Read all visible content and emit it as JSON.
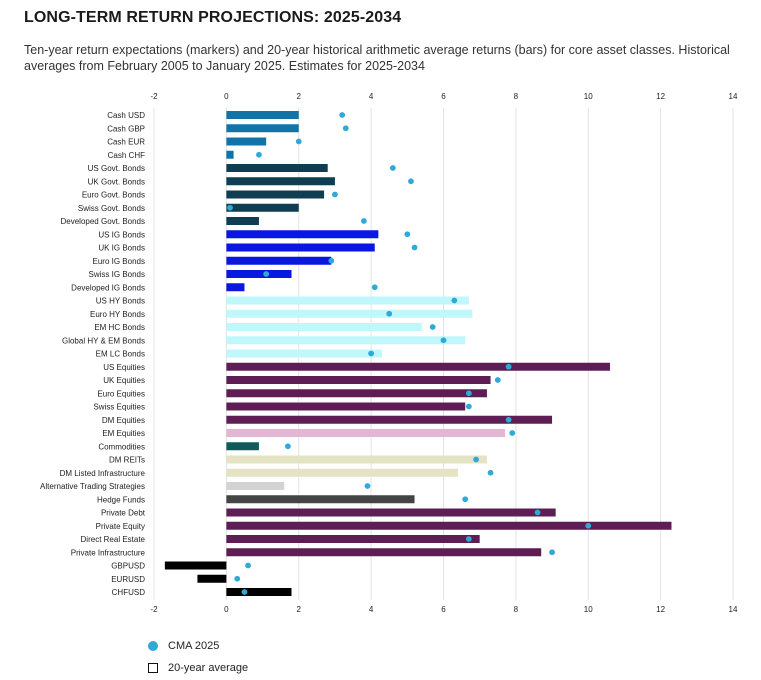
{
  "title": "LONG-TERM RETURN PROJECTIONS: 2025-2034",
  "subtitle": "Ten-year return expectations (markers) and 20-year historical arithmetic average returns (bars) for core asset classes. Historical averages from February 2005 to January 2025. Estimates for 2025-2034",
  "legend": {
    "cma_label": "CMA 2025",
    "avg_label": "20-year average"
  },
  "colors": {
    "marker": "#2fa9d6",
    "grid": "#e3e3e3"
  },
  "chart_data": {
    "type": "bar",
    "orientation": "horizontal",
    "title": "LONG-TERM RETURN PROJECTIONS: 2025-2034",
    "xlim": [
      -2,
      14
    ],
    "xticks": [
      "-2",
      "0",
      "2",
      "4",
      "6",
      "8",
      "10",
      "12",
      "14"
    ],
    "tick_values": [
      -2,
      0,
      2,
      4,
      6,
      8,
      10,
      12,
      14
    ],
    "grid": "vertical",
    "legend_position": "bottom-left",
    "categories": [
      "Cash USD",
      "Cash GBP",
      "Cash EUR",
      "Cash CHF",
      "US Govt. Bonds",
      "UK Govt. Bonds",
      "Euro Govt. Bonds",
      "Swiss Govt. Bonds",
      "Developed Govt. Bonds",
      "US IG Bonds",
      "UK IG Bonds",
      "Euro IG Bonds",
      "Swiss IG Bonds",
      "Developed IG Bonds",
      "US HY Bonds",
      "Euro HY Bonds",
      "EM HC Bonds",
      "Global HY & EM Bonds",
      "EM LC Bonds",
      "US Equities",
      "UK Equities",
      "Euro Equities",
      "Swiss Equities",
      "DM Equities",
      "EM Equities",
      "Commodities",
      "DM REITs",
      "DM Listed Infrastructure",
      "Alternative Trading Strategies",
      "Hedge Funds",
      "Private Debt",
      "Private Equity",
      "Direct Real Estate",
      "Private Infrastructure",
      "GBPUSD",
      "EURUSD",
      "CHFUSD"
    ],
    "series": [
      {
        "name": "20-year average",
        "values": [
          2.0,
          2.0,
          1.1,
          0.2,
          2.8,
          3.0,
          2.7,
          2.0,
          0.9,
          4.2,
          4.1,
          2.9,
          1.8,
          0.5,
          6.7,
          6.8,
          5.4,
          6.6,
          4.3,
          10.6,
          7.3,
          7.2,
          6.6,
          9.0,
          7.7,
          0.9,
          7.2,
          6.4,
          1.6,
          5.2,
          9.1,
          12.3,
          7.0,
          8.7,
          -1.7,
          -0.8,
          1.8
        ]
      },
      {
        "name": "CMA 2025",
        "values": [
          3.2,
          3.3,
          2.0,
          0.9,
          4.6,
          5.1,
          3.0,
          0.1,
          3.8,
          5.0,
          5.2,
          2.9,
          1.1,
          4.1,
          6.3,
          4.5,
          5.7,
          6.0,
          4.0,
          7.8,
          7.5,
          6.7,
          6.7,
          7.8,
          7.9,
          1.7,
          6.9,
          7.3,
          3.9,
          6.6,
          8.6,
          10.0,
          6.7,
          9.0,
          0.6,
          0.3,
          0.5
        ]
      }
    ],
    "bar_colors": [
      "#1074a8",
      "#1074a8",
      "#1074a8",
      "#1074a8",
      "#0f3d52",
      "#0f3d52",
      "#0f3d52",
      "#0f3d52",
      "#0f3d52",
      "#0a17e0",
      "#0a17e0",
      "#0a17e0",
      "#0a17e0",
      "#0a17e0",
      "#bff7fb",
      "#bff7fb",
      "#bff7fb",
      "#bff7fb",
      "#bff7fb",
      "#5e1d54",
      "#5e1d54",
      "#5e1d54",
      "#5e1d54",
      "#5e1d54",
      "#e3b6d4",
      "#0e5b5a",
      "#e4e4c5",
      "#e4e4c5",
      "#d3d3d3",
      "#444444",
      "#5e1d54",
      "#5e1d54",
      "#5e1d54",
      "#5e1d54",
      "#000000",
      "#000000",
      "#000000"
    ]
  }
}
